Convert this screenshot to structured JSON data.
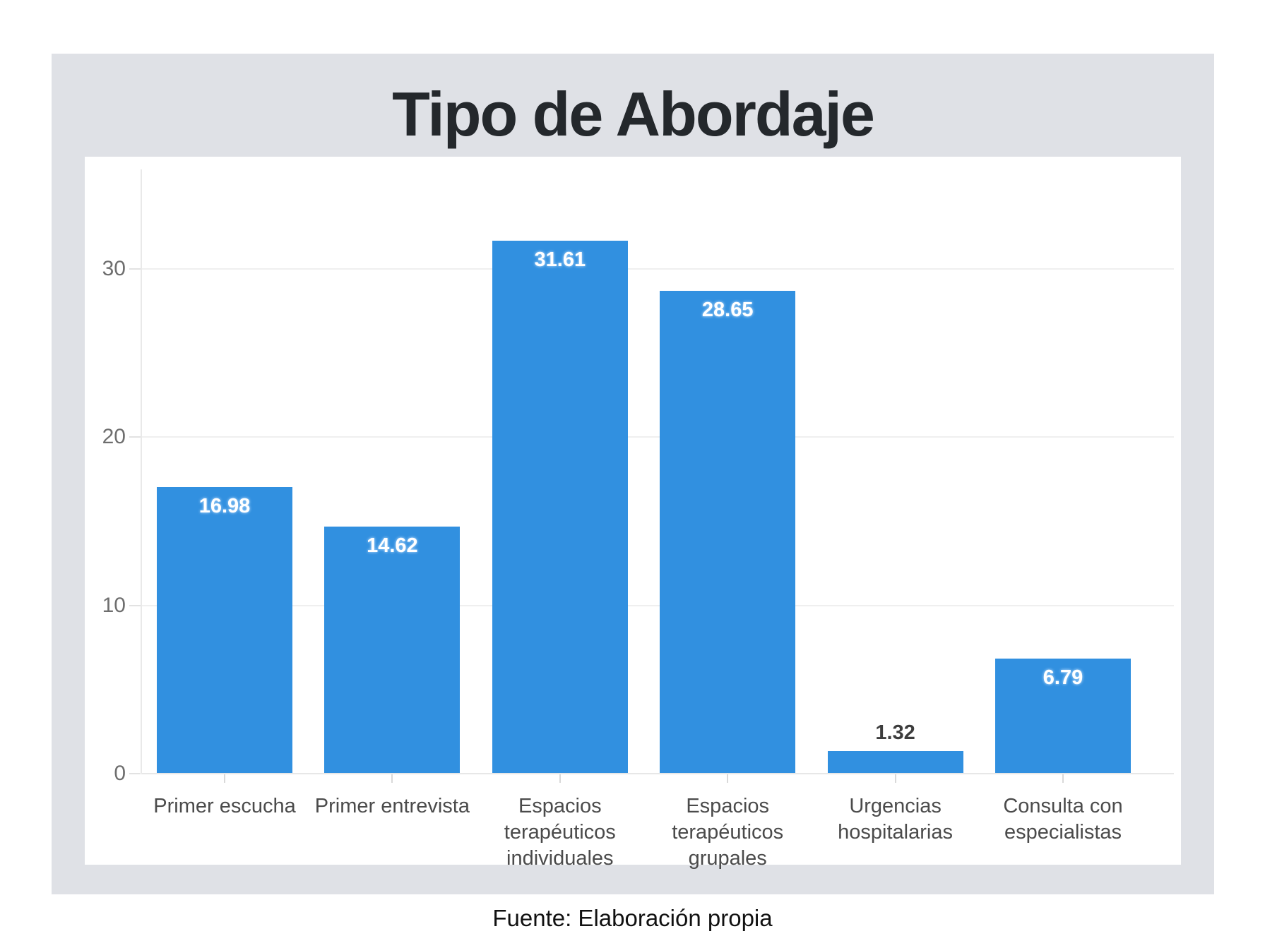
{
  "title": "Tipo de Abordaje",
  "source_note": "Fuente: Elaboración propia",
  "chart_data": {
    "type": "bar",
    "title": "Tipo de Abordaje",
    "categories": [
      "Primer escucha",
      "Primer entrevista",
      "Espacios terapéuticos individuales",
      "Espacios terapéuticos grupales",
      "Urgencias hospitalarias",
      "Consulta con especialistas"
    ],
    "values": [
      16.98,
      14.62,
      31.61,
      28.65,
      1.32,
      6.79
    ],
    "value_labels": [
      "16.98",
      "14.62",
      "31.61",
      "28.65",
      "1.32",
      "6.79"
    ],
    "y_ticks": [
      0,
      10,
      20,
      30
    ],
    "ylim": [
      0,
      36.6
    ],
    "xlabel": "",
    "ylabel": "",
    "grid": true,
    "legend": false,
    "bar_color": "#3190e0"
  },
  "colors": {
    "page_bg": "#ffffff",
    "card_bg": "#dfe1e6",
    "panel_bg": "#ffffff",
    "gridline": "#efefef",
    "axis_line": "#e9e9e9",
    "tick_label": "#6e6e6e",
    "category_label": "#4b4b4b",
    "title": "#24282c",
    "value_label_inside": "#ffffff",
    "value_label_outside": "#3c3c3c",
    "footer": "#111111"
  }
}
